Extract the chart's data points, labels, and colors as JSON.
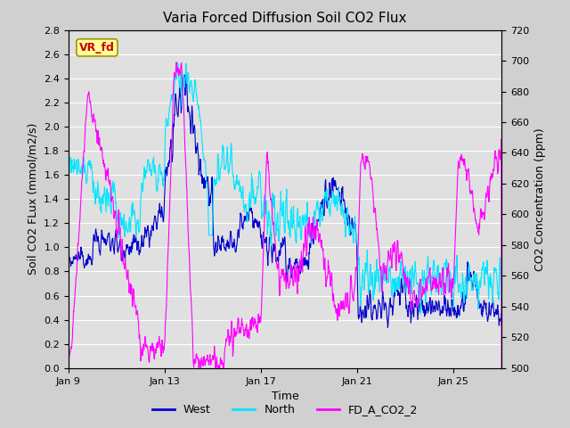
{
  "title": "Varia Forced Diffusion Soil CO2 Flux",
  "xlabel": "Time",
  "ylabel_left": "Soil CO2 FLux (mmol/m2/s)",
  "ylabel_right": "CO2 Concentration (ppm)",
  "ylim_left": [
    0.0,
    2.8
  ],
  "ylim_right": [
    500,
    720
  ],
  "yticks_left": [
    0.0,
    0.2,
    0.4,
    0.6,
    0.8,
    1.0,
    1.2,
    1.4,
    1.6,
    1.8,
    2.0,
    2.2,
    2.4,
    2.6,
    2.8
  ],
  "yticks_right": [
    500,
    520,
    540,
    560,
    580,
    600,
    620,
    640,
    660,
    680,
    700,
    720
  ],
  "xtick_labels": [
    "Jan 9",
    "Jan 13",
    "Jan 17",
    "Jan 21",
    "Jan 25"
  ],
  "xtick_positions": [
    0,
    4,
    8,
    12,
    16
  ],
  "xlim": [
    0,
    18
  ],
  "color_west": "#0000cd",
  "color_north": "#00e5ff",
  "color_fd": "#ff00ff",
  "fig_bg_color": "#d0d0d0",
  "plot_bg_color": "#e0e0e0",
  "grid_color": "#ffffff",
  "vr_fd_label": "VR_fd",
  "vr_fd_bg": "#ffff99",
  "vr_fd_text_color": "#cc0000",
  "vr_fd_edge_color": "#999900",
  "legend_labels": [
    "West",
    "North",
    "FD_A_CO2_2"
  ],
  "seed": 42,
  "n_points": 1200,
  "line_width": 0.8,
  "title_fontsize": 11,
  "label_fontsize": 9,
  "tick_fontsize": 8,
  "legend_fontsize": 9
}
